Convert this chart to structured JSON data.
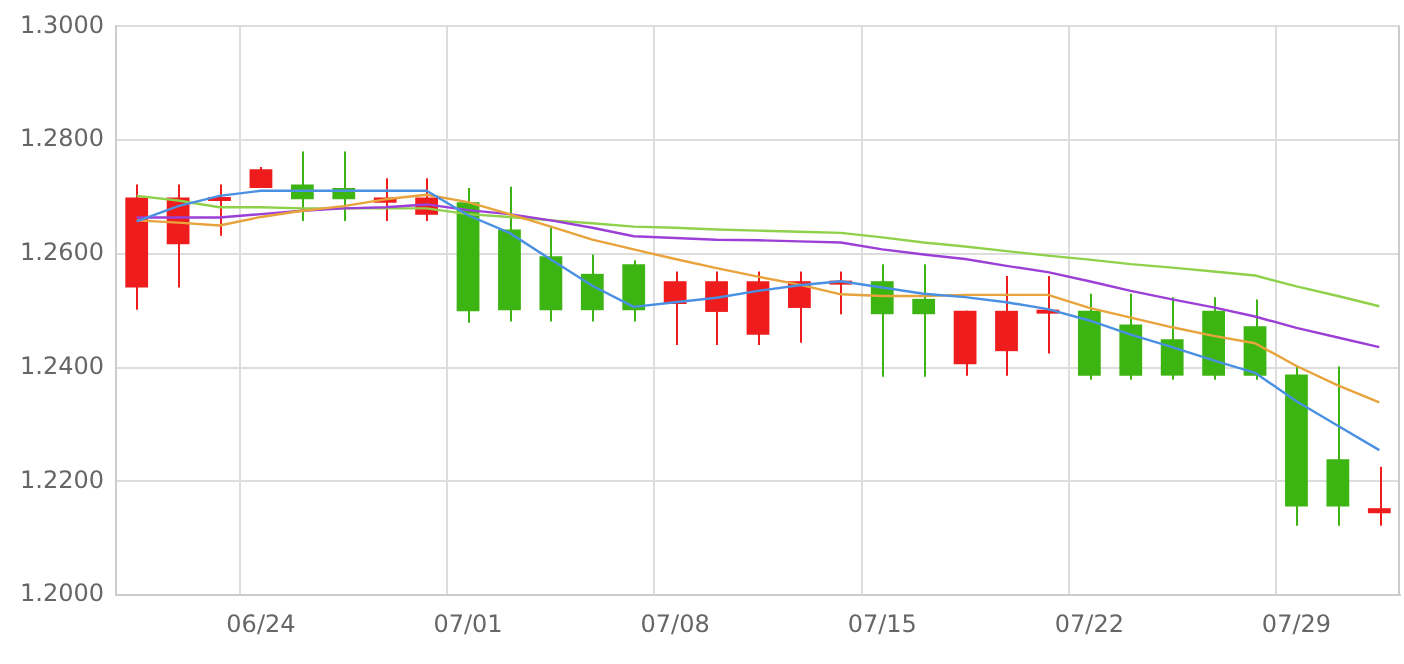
{
  "chart_data": {
    "type": "candlestick",
    "categories": [
      null,
      null,
      null,
      "06/24",
      null,
      null,
      null,
      null,
      "07/01",
      null,
      null,
      null,
      null,
      "07/08",
      null,
      null,
      null,
      null,
      "07/15",
      null,
      null,
      null,
      null,
      "07/22",
      null,
      null,
      null,
      null,
      "07/29",
      null,
      null
    ],
    "ohlc": [
      [
        1.2541,
        1.2722,
        1.2502,
        1.2699
      ],
      [
        1.2617,
        1.2722,
        1.2541,
        1.2699
      ],
      [
        1.2693,
        1.2722,
        1.2632,
        1.2699
      ],
      [
        1.2716,
        1.2753,
        1.2716,
        1.2749
      ],
      [
        1.2722,
        1.278,
        1.2658,
        1.2696
      ],
      [
        1.2716,
        1.278,
        1.2658,
        1.2696
      ],
      [
        1.269,
        1.2733,
        1.2658,
        1.2699
      ],
      [
        1.2669,
        1.2733,
        1.2658,
        1.2699
      ],
      [
        1.2691,
        1.2716,
        1.2479,
        1.2499
      ],
      [
        1.2643,
        1.2718,
        1.2481,
        1.2501
      ],
      [
        1.2596,
        1.2648,
        1.2481,
        1.2501
      ],
      [
        1.2565,
        1.2599,
        1.2481,
        1.2501
      ],
      [
        1.2582,
        1.2589,
        1.2481,
        1.2501
      ],
      [
        1.2512,
        1.2569,
        1.244,
        1.2552
      ],
      [
        1.2498,
        1.2569,
        1.244,
        1.2552
      ],
      [
        1.2458,
        1.2569,
        1.244,
        1.2552
      ],
      [
        1.2505,
        1.2569,
        1.2444,
        1.2552
      ],
      [
        1.2546,
        1.2569,
        1.2494,
        1.2552
      ],
      [
        1.2552,
        1.2582,
        1.2384,
        1.2494
      ],
      [
        1.2521,
        1.2582,
        1.2384,
        1.2494
      ],
      [
        1.2406,
        1.25,
        1.2386,
        1.25
      ],
      [
        1.2429,
        1.2561,
        1.2386,
        1.25
      ],
      [
        1.2495,
        1.2561,
        1.2425,
        1.25
      ],
      [
        1.25,
        1.253,
        1.2379,
        1.2386
      ],
      [
        1.2476,
        1.253,
        1.2379,
        1.2386
      ],
      [
        1.245,
        1.2524,
        1.2379,
        1.2386
      ],
      [
        1.25,
        1.2524,
        1.2379,
        1.2386
      ],
      [
        1.2473,
        1.252,
        1.2379,
        1.2386
      ],
      [
        1.2388,
        1.2402,
        1.2122,
        1.2156
      ],
      [
        1.2239,
        1.2402,
        1.2122,
        1.2156
      ],
      [
        1.2144,
        1.2226,
        1.2122,
        1.2153
      ]
    ],
    "colors": [
      "#ee1c1c",
      "#ee1c1c",
      "#ee1c1c",
      "#ee1c1c",
      "#3cb412",
      "#3cb412",
      "#ee1c1c",
      "#ee1c1c",
      "#3cb412",
      "#3cb412",
      "#3cb412",
      "#3cb412",
      "#3cb412",
      "#ee1c1c",
      "#ee1c1c",
      "#ee1c1c",
      "#ee1c1c",
      "#ee1c1c",
      "#3cb412",
      "#3cb412",
      "#ee1c1c",
      "#ee1c1c",
      "#ee1c1c",
      "#3cb412",
      "#3cb412",
      "#3cb412",
      "#3cb412",
      "#3cb412",
      "#3cb412",
      "#3cb412",
      "#ee1c1c"
    ],
    "series": [
      {
        "type": "line",
        "color": "#4a90e2",
        "values": [
          1.2657,
          1.2684,
          1.2702,
          1.2711,
          1.2711,
          1.2711,
          1.2711,
          1.2711,
          1.2668,
          1.2637,
          1.259,
          1.2544,
          1.2507,
          1.2515,
          1.2523,
          1.2535,
          1.2545,
          1.2552,
          1.2541,
          1.253,
          1.2524,
          1.2515,
          1.2503,
          1.2483,
          1.2458,
          1.2436,
          1.2413,
          1.2391,
          1.2341,
          1.2298,
          1.2255
        ]
      },
      {
        "type": "line",
        "color": "#e8a33c",
        "values": [
          1.2659,
          1.2655,
          1.265,
          1.2665,
          1.2676,
          1.2684,
          1.2696,
          1.2704,
          1.2691,
          1.267,
          1.2648,
          1.2625,
          1.2608,
          1.2591,
          1.2575,
          1.256,
          1.2546,
          1.2529,
          1.2526,
          1.2526,
          1.2528,
          1.2528,
          1.2528,
          1.2505,
          1.2488,
          1.2471,
          1.2456,
          1.2443,
          1.2403,
          1.2369,
          1.2339
        ]
      },
      {
        "type": "line",
        "color": "#9b3fd6",
        "values": [
          1.2664,
          1.2664,
          1.2664,
          1.267,
          1.2676,
          1.268,
          1.2682,
          1.2687,
          1.2677,
          1.267,
          1.2659,
          1.2646,
          1.2631,
          1.2628,
          1.2625,
          1.2624,
          1.2622,
          1.262,
          1.2608,
          1.2599,
          1.2591,
          1.2579,
          1.2568,
          1.2552,
          1.2535,
          1.252,
          1.2506,
          1.249,
          1.247,
          1.2453,
          1.2436
        ]
      },
      {
        "type": "line",
        "color": "#8fd14a",
        "values": [
          1.2702,
          1.2694,
          1.2682,
          1.2682,
          1.268,
          1.268,
          1.268,
          1.268,
          1.267,
          1.2665,
          1.2659,
          1.2654,
          1.2648,
          1.2646,
          1.2643,
          1.2641,
          1.2639,
          1.2637,
          1.2629,
          1.262,
          1.2613,
          1.2605,
          1.2597,
          1.259,
          1.2582,
          1.2576,
          1.2569,
          1.2562,
          1.2543,
          1.2526,
          1.2508
        ]
      }
    ],
    "ylim": [
      1.2,
      1.3
    ],
    "yticks": [
      {
        "value": 1.2,
        "label": "1.2000"
      },
      {
        "value": 1.22,
        "label": "1.2200"
      },
      {
        "value": 1.24,
        "label": "1.2400"
      },
      {
        "value": 1.26,
        "label": "1.2600"
      },
      {
        "value": 1.28,
        "label": "1.2800"
      },
      {
        "value": 1.3,
        "label": "1.3000"
      }
    ],
    "grid": true,
    "legend": false,
    "marker": "none",
    "line_style": "solid"
  }
}
